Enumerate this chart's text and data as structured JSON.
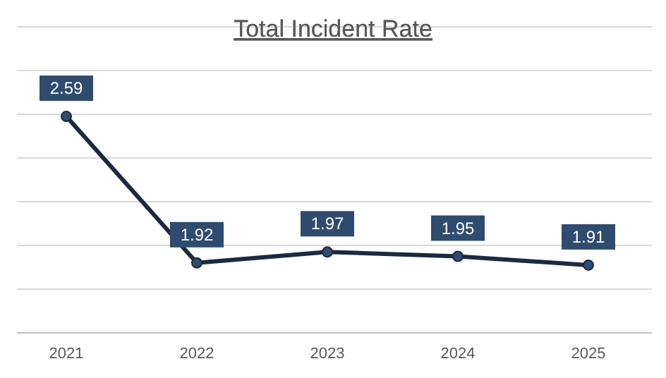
{
  "chart_data": {
    "type": "line",
    "title": "Total Incident Rate",
    "categories": [
      "2021",
      "2022",
      "2023",
      "2024",
      "2025"
    ],
    "series": [
      {
        "color": "#1c2a40",
        "values": [
          2.59,
          1.92,
          1.97,
          1.95,
          1.91
        ]
      }
    ],
    "ylim": [
      1.6,
      3.0
    ],
    "yticks": [
      {
        "value": 1.6,
        "label": null
      },
      {
        "value": 1.8,
        "label": null
      },
      {
        "value": 2.0,
        "label": null
      },
      {
        "value": 2.2,
        "label": null
      },
      {
        "value": 2.4,
        "label": null
      },
      {
        "value": 2.6,
        "label": null
      },
      {
        "value": 2.8,
        "label": null
      },
      {
        "value": 3.0,
        "label": null
      }
    ],
    "grid": "y",
    "tick_labels": "x",
    "marker": "circle",
    "data_labels": true
  }
}
